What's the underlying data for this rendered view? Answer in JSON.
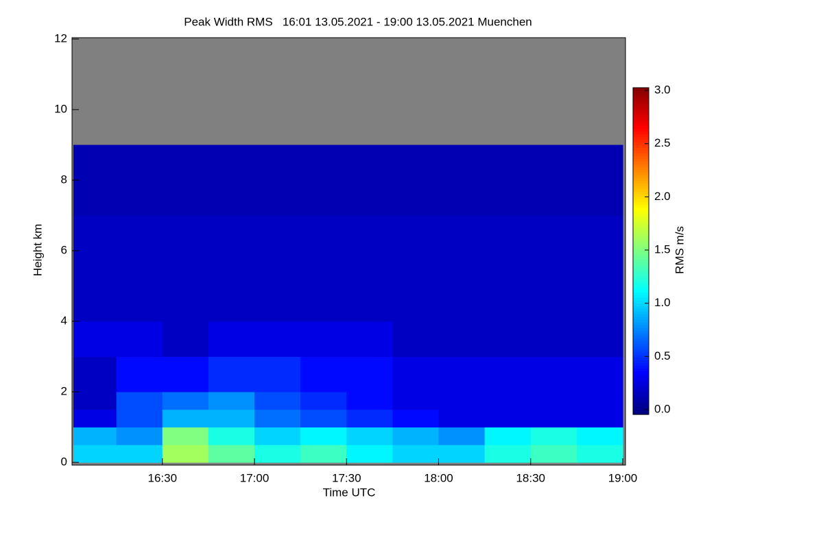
{
  "chart_data": {
    "type": "heatmap",
    "title": "Peak Width RMS   16:01 13.05.2021 - 19:00 13.05.2021 Muenchen",
    "x_label": "Time UTC",
    "y_label": "Height km",
    "colorbar_label": "RMS m/s",
    "colormap": "jet",
    "missing_color": "#808080",
    "x_bins": [
      16.0167,
      16.25,
      16.5,
      16.75,
      17.0,
      17.25,
      17.5,
      17.75,
      18.0,
      18.25,
      18.5,
      18.75,
      19.0
    ],
    "y_bins": [
      0,
      0.5,
      1,
      1.5,
      2,
      3,
      4,
      5,
      6,
      7,
      8,
      9,
      12
    ],
    "z": [
      [
        1.0,
        1.0,
        1.6,
        1.4,
        1.2,
        1.3,
        1.1,
        1.0,
        1.0,
        1.2,
        1.3,
        1.2
      ],
      [
        0.9,
        0.8,
        1.5,
        1.2,
        1.0,
        1.1,
        1.0,
        0.9,
        0.8,
        1.1,
        1.2,
        1.1
      ],
      [
        0.3,
        0.6,
        0.9,
        0.9,
        0.7,
        0.6,
        0.5,
        0.4,
        0.3,
        0.3,
        0.3,
        0.3
      ],
      [
        0.2,
        0.6,
        0.7,
        0.8,
        0.6,
        0.5,
        0.4,
        0.3,
        0.3,
        0.3,
        0.3,
        0.3
      ],
      [
        0.2,
        0.4,
        0.4,
        0.5,
        0.5,
        0.4,
        0.4,
        0.3,
        0.3,
        0.3,
        0.3,
        0.3
      ],
      [
        0.3,
        0.3,
        0.2,
        0.3,
        0.3,
        0.3,
        0.3,
        0.2,
        0.2,
        0.2,
        0.2,
        0.2
      ],
      [
        0.2,
        0.2,
        0.2,
        0.2,
        0.2,
        0.2,
        0.2,
        0.2,
        0.2,
        0.2,
        0.2,
        0.2
      ],
      [
        0.2,
        0.2,
        0.2,
        0.2,
        0.2,
        0.2,
        0.2,
        0.2,
        0.2,
        0.2,
        0.2,
        0.2
      ],
      [
        0.2,
        0.2,
        0.2,
        0.2,
        0.2,
        0.2,
        0.2,
        0.2,
        0.2,
        0.2,
        0.2,
        0.2
      ],
      [
        0.15,
        0.15,
        0.15,
        0.15,
        0.15,
        0.15,
        0.15,
        0.15,
        0.15,
        0.15,
        0.15,
        0.15
      ],
      [
        0.15,
        0.15,
        0.15,
        0.15,
        0.15,
        0.15,
        0.15,
        0.15,
        0.15,
        0.15,
        0.15,
        0.15
      ],
      [
        null,
        null,
        null,
        null,
        null,
        null,
        null,
        null,
        null,
        null,
        null,
        null
      ]
    ],
    "xlim": [
      16.0167,
      19.0
    ],
    "xticks": [
      {
        "value": 16.5,
        "label": "16:30"
      },
      {
        "value": 17.0,
        "label": "17:00"
      },
      {
        "value": 17.5,
        "label": "17:30"
      },
      {
        "value": 18.0,
        "label": "18:00"
      },
      {
        "value": 18.5,
        "label": "18:30"
      },
      {
        "value": 19.0,
        "label": "19:00"
      }
    ],
    "ylim": [
      0,
      12
    ],
    "yticks": [
      0,
      2,
      4,
      6,
      8,
      10,
      12
    ],
    "zlim": [
      0,
      3
    ],
    "zticks": [
      {
        "value": 0,
        "label": "0.0"
      },
      {
        "value": 0.5,
        "label": "0.5"
      },
      {
        "value": 1,
        "label": "1.0"
      },
      {
        "value": 1.5,
        "label": "1.5"
      },
      {
        "value": 2,
        "label": "2.0"
      },
      {
        "value": 2.5,
        "label": "2.5"
      },
      {
        "value": 3,
        "label": "3.0"
      }
    ]
  }
}
